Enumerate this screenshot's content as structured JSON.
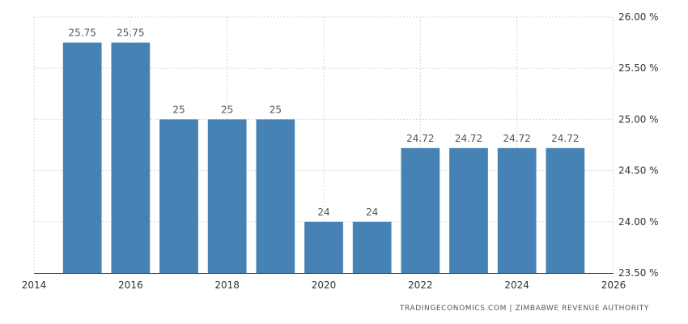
{
  "chart_data": {
    "type": "bar",
    "x": [
      2015,
      2016,
      2017,
      2018,
      2019,
      2020,
      2021,
      2022,
      2023,
      2024,
      2025
    ],
    "values": [
      25.75,
      25.75,
      25,
      25,
      25,
      24,
      24,
      24.72,
      24.72,
      24.72,
      24.72
    ],
    "data_labels": [
      "25.75",
      "25.75",
      "25",
      "25",
      "25",
      "24",
      "24",
      "24.72",
      "24.72",
      "24.72",
      "24.72"
    ],
    "bar_color": "#4682b4",
    "ylim": [
      23.5,
      26.0
    ],
    "yticks": [
      23.5,
      24.0,
      24.5,
      25.0,
      25.5,
      26.0
    ],
    "ytick_labels": [
      "23.50 %",
      "24.00 %",
      "24.50 %",
      "25.00 %",
      "25.50 %",
      "26.00 %"
    ],
    "xlim": [
      2014,
      2026
    ],
    "xticks": [
      2014,
      2016,
      2018,
      2020,
      2022,
      2024,
      2026
    ],
    "xtick_labels": [
      "2014",
      "2016",
      "2018",
      "2020",
      "2022",
      "2024",
      "2026"
    ],
    "y_axis_side": "right",
    "grid": true
  },
  "source": "TRADINGECONOMICS.COM  |  ZIMBABWE REVENUE AUTHORITY"
}
